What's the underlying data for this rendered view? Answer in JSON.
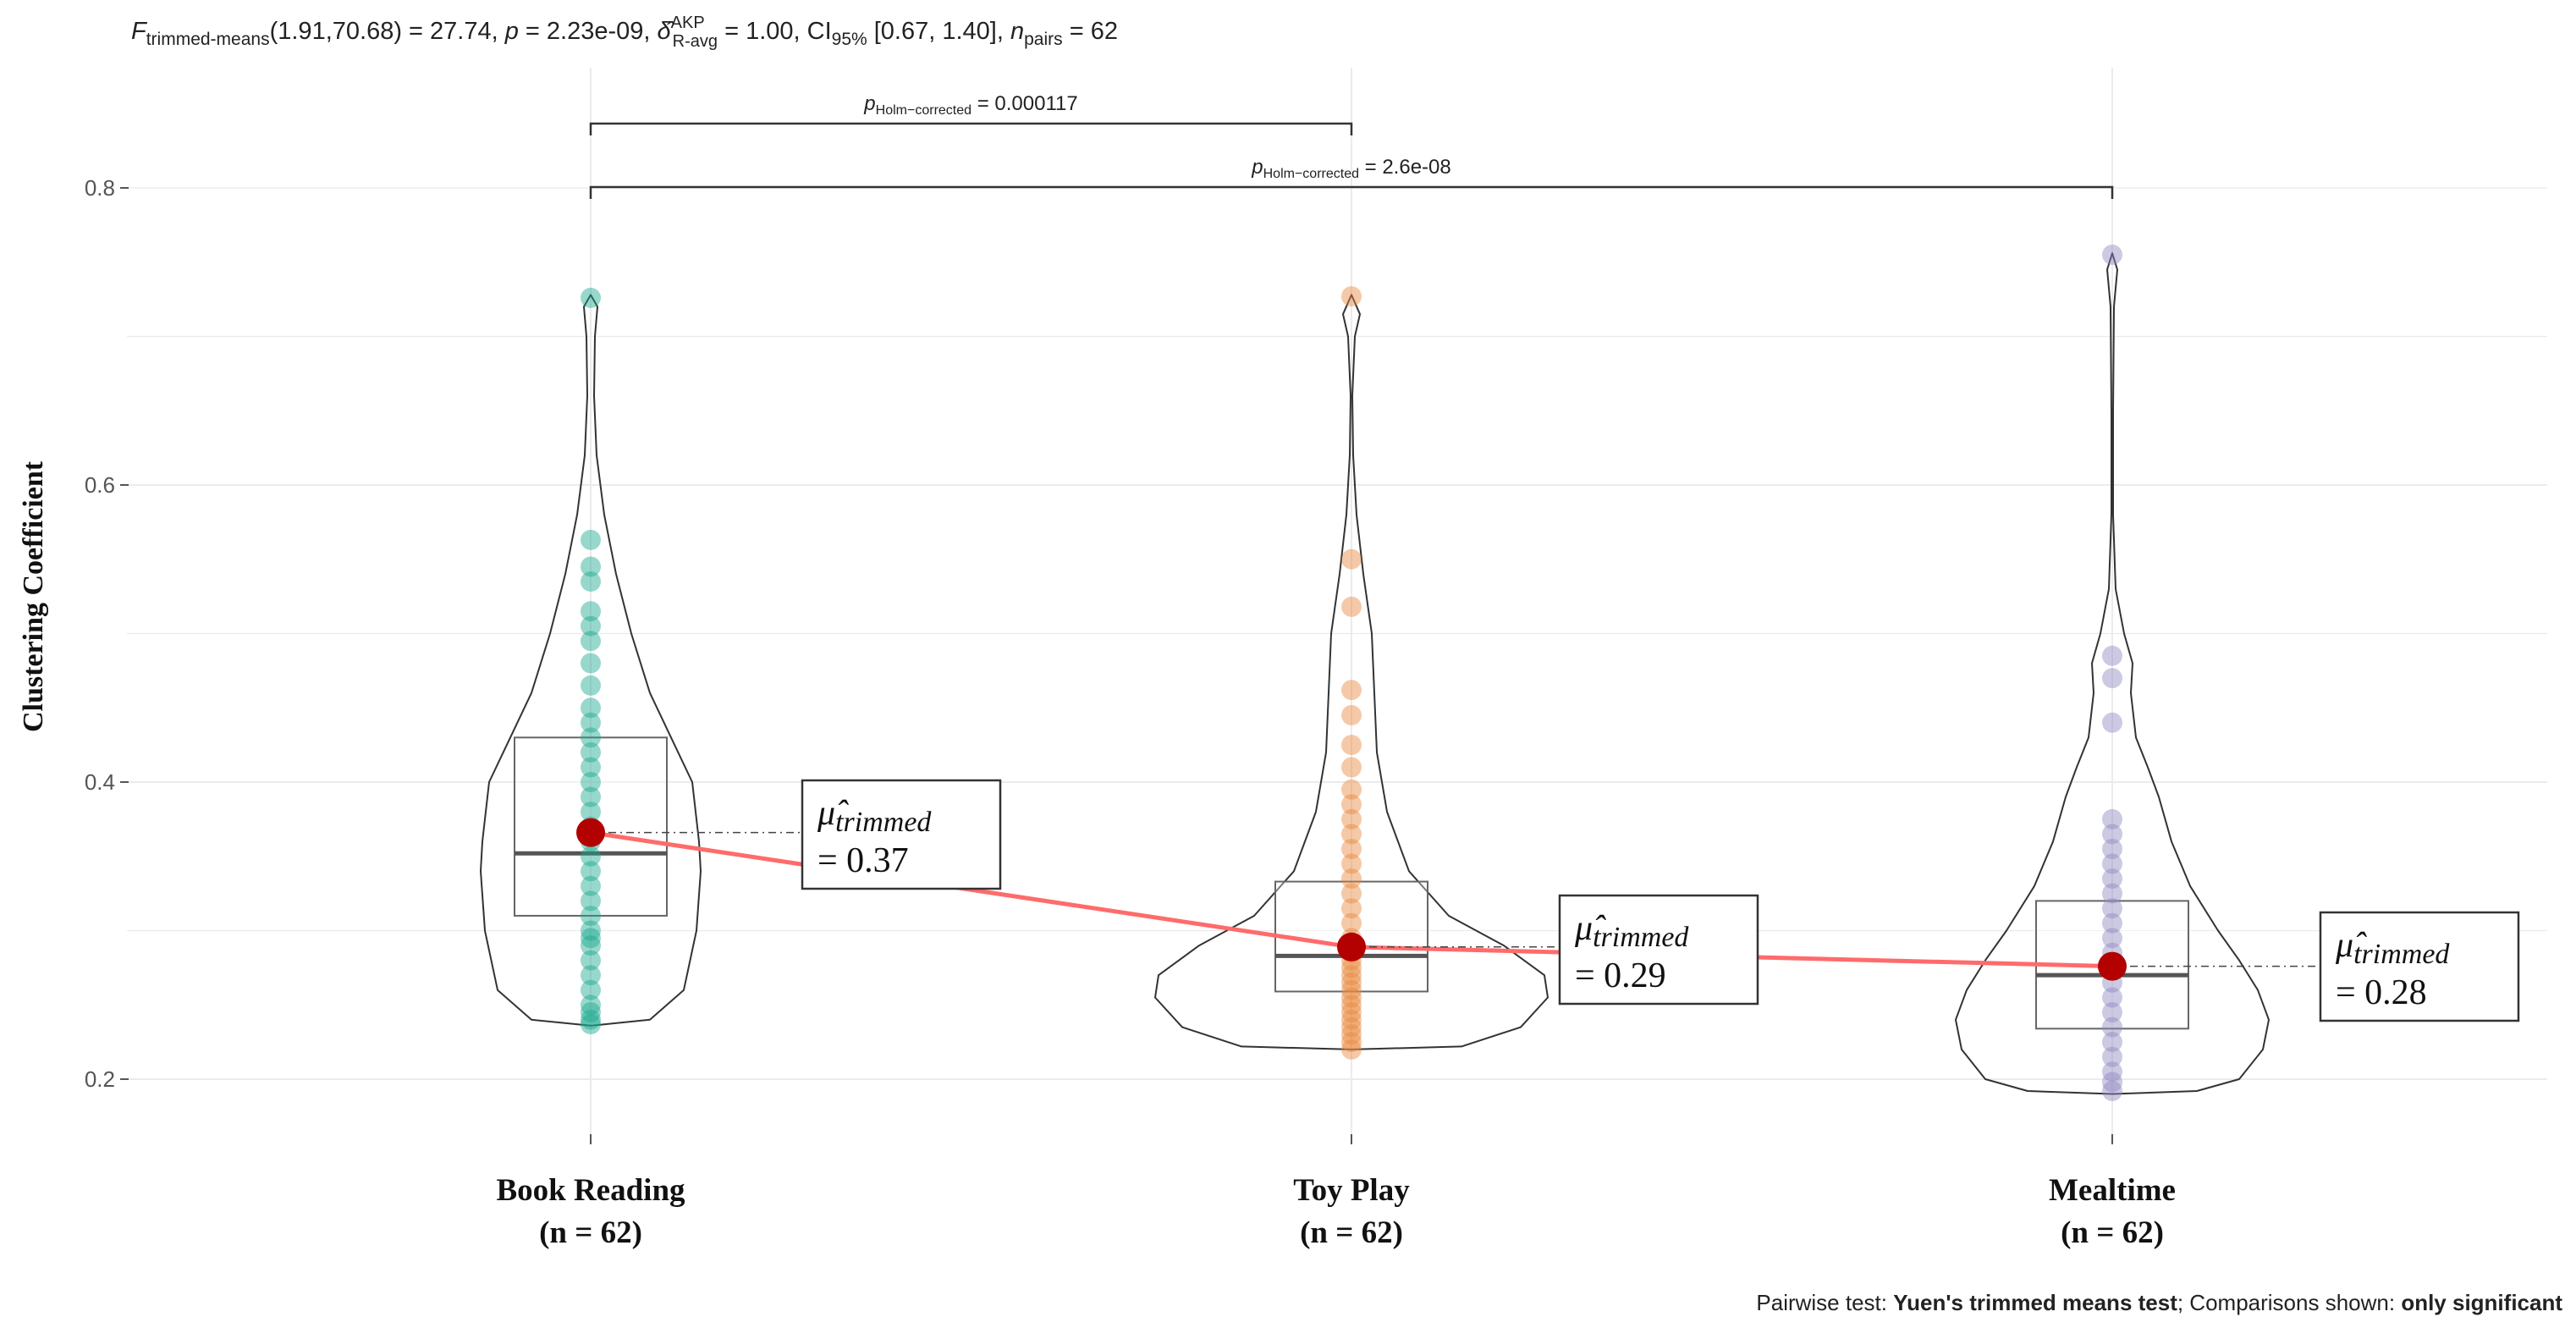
{
  "chart_data": {
    "type": "violin",
    "subtitle": {
      "stat_name": "F",
      "stat_sub": "trimmed-means",
      "df": "(1.91,70.68) = 27.74, ",
      "p_label": "p",
      "p_value": " = 2.23e-09, ",
      "effect_sup": "AKP",
      "effect_sub": "R-avg",
      "effect_value": " = 1.00, CI",
      "ci_sub": "95%",
      "ci_value": " [0.67, 1.40], ",
      "n_label": "n",
      "n_sub": "pairs",
      "n_value": " = 62"
    },
    "ylabel": "Clustering Coefficient",
    "ylim": [
      0.16,
      0.86
    ],
    "yticks": [
      "0.2",
      "0.4",
      "0.6",
      "0.8"
    ],
    "categories": [
      {
        "name": "Book Reading",
        "n_label": "(n = 62)",
        "color": "#1aa88f"
      },
      {
        "name": "Toy Play",
        "n_label": "(n = 62)",
        "color": "#e8873c"
      },
      {
        "name": "Mealtime",
        "n_label": "(n = 62)",
        "color": "#8f88c2"
      }
    ],
    "boxes": [
      {
        "q1": 0.31,
        "median": 0.352,
        "q3": 0.43
      },
      {
        "q1": 0.259,
        "median": 0.283,
        "q3": 0.333
      },
      {
        "q1": 0.234,
        "median": 0.27,
        "q3": 0.32
      }
    ],
    "trimmed_means": [
      0.366,
      0.289,
      0.276
    ],
    "mean_labels": [
      {
        "symbol": "μ̂",
        "subscript": "trimmed",
        "value": "= 0.37"
      },
      {
        "symbol": "μ̂",
        "subscript": "trimmed",
        "value": "= 0.29"
      },
      {
        "symbol": "μ̂",
        "subscript": "trimmed",
        "value": "= 0.28"
      }
    ],
    "points": [
      [
        0.726,
        0.563,
        0.545,
        0.535,
        0.515,
        0.505,
        0.495,
        0.48,
        0.465,
        0.45,
        0.44,
        0.43,
        0.42,
        0.41,
        0.4,
        0.39,
        0.38,
        0.37,
        0.36,
        0.35,
        0.34,
        0.33,
        0.32,
        0.31,
        0.3,
        0.295,
        0.29,
        0.28,
        0.27,
        0.26,
        0.25,
        0.245,
        0.24,
        0.237
      ],
      [
        0.727,
        0.55,
        0.518,
        0.462,
        0.445,
        0.425,
        0.41,
        0.395,
        0.385,
        0.375,
        0.365,
        0.355,
        0.345,
        0.335,
        0.325,
        0.315,
        0.305,
        0.295,
        0.29,
        0.285,
        0.28,
        0.275,
        0.27,
        0.265,
        0.26,
        0.255,
        0.25,
        0.245,
        0.24,
        0.235,
        0.23,
        0.225,
        0.22
      ],
      [
        0.755,
        0.485,
        0.47,
        0.44,
        0.375,
        0.365,
        0.355,
        0.345,
        0.335,
        0.325,
        0.315,
        0.305,
        0.295,
        0.285,
        0.275,
        0.265,
        0.255,
        0.245,
        0.235,
        0.225,
        0.215,
        0.205,
        0.198,
        0.192
      ]
    ],
    "comparisons": [
      {
        "from": 0,
        "to": 1,
        "label_p": "p",
        "label_sub": "Holm−corrected",
        "label_value": " = 0.000117",
        "y": 0.845
      },
      {
        "from": 0,
        "to": 2,
        "label_p": "p",
        "label_sub": "Holm−corrected",
        "label_value": " = 2.6e-08",
        "y": 0.802
      }
    ],
    "caption": {
      "prefix": "Pairwise test: ",
      "test": "Yuen's trimmed means test",
      "middle": "; Comparisons shown: ",
      "shown": "only significant"
    },
    "colors": {
      "mean_line": "#ff6b6b",
      "mean_point": "#b30000",
      "grid": "#ebebeb"
    },
    "grid": true,
    "legend": "none"
  }
}
